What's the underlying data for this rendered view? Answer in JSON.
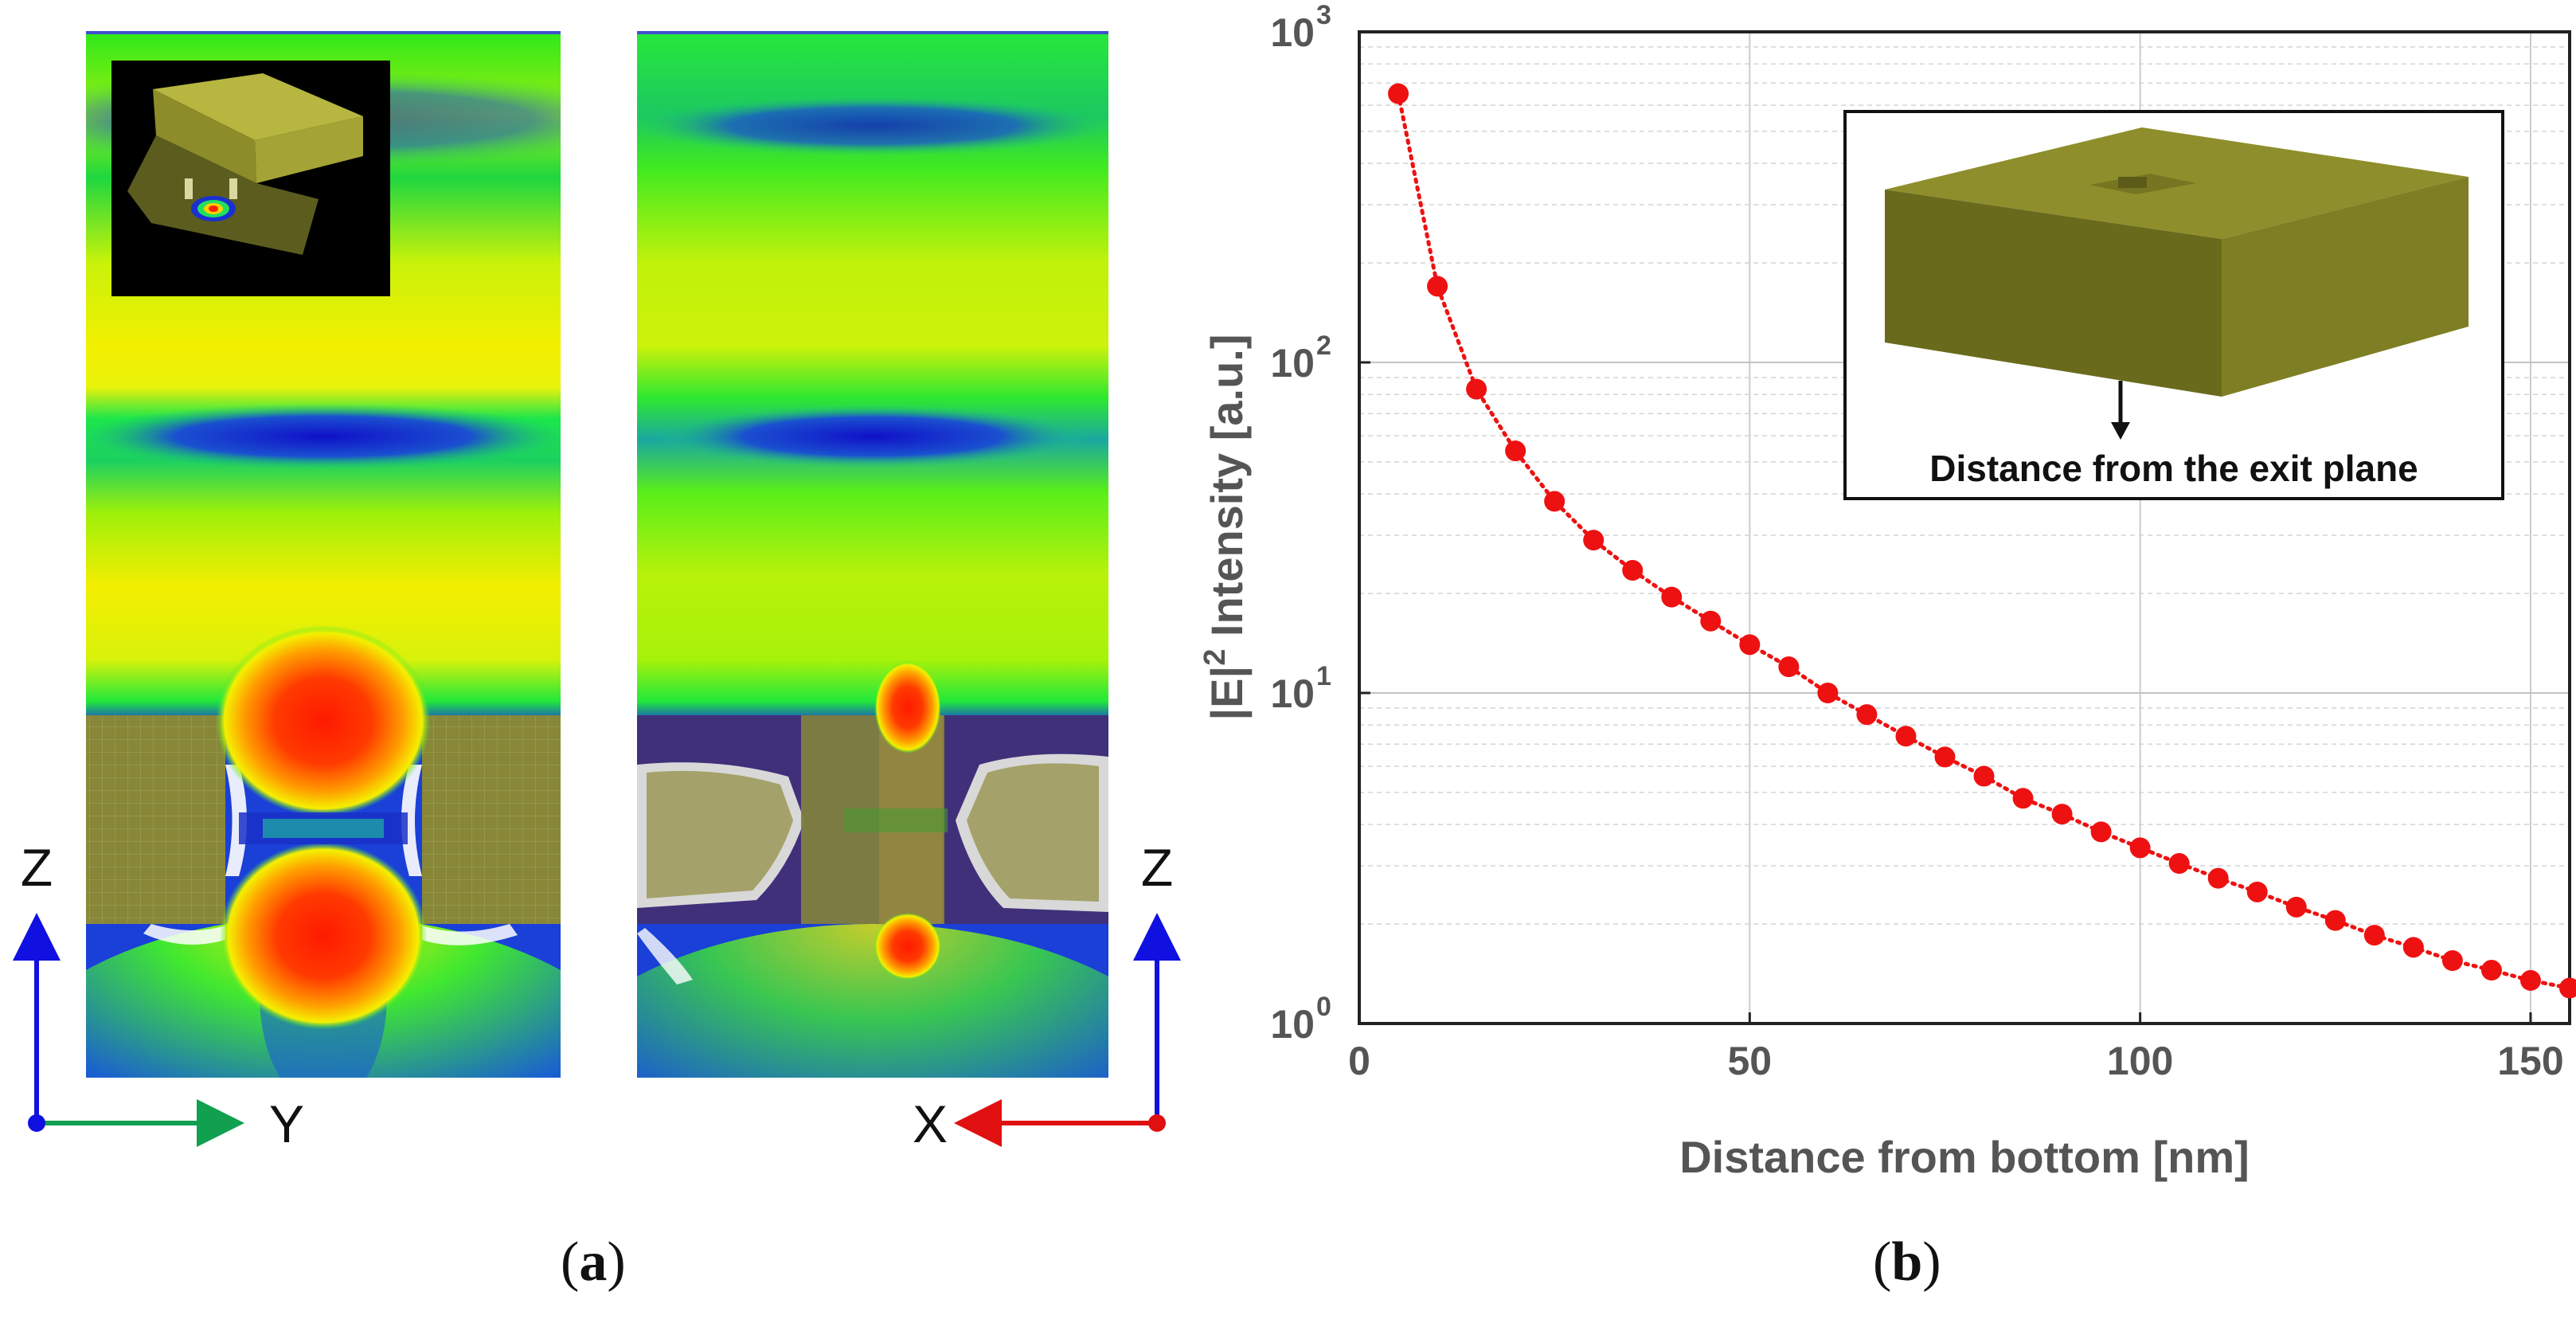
{
  "panel_a": {
    "caption_open": "(",
    "caption_label": "a",
    "caption_close": ")",
    "left_axis": {
      "vertical": "Z",
      "horizontal": "Y",
      "vertical_color": "#1010e0",
      "horizontal_color": "#10a050"
    },
    "right_axis": {
      "vertical": "Z",
      "horizontal": "X",
      "vertical_color": "#1010e0",
      "horizontal_color": "#e01010"
    },
    "colors": {
      "metal": "#8a8a38",
      "hot": "#ff2a00",
      "field_green": "#1cf000",
      "field_yellow": "#f2f000",
      "node_blue": "#1030d0"
    }
  },
  "panel_b": {
    "caption_open": "(",
    "caption_label": "b",
    "caption_close": ")",
    "inset_label": "Distance from the exit plane"
  },
  "chart_data": {
    "type": "line",
    "title": "",
    "xlabel": "Distance from bottom [nm]",
    "ylabel_pre": "|E|",
    "ylabel_sup": "2",
    "ylabel_post": " Intensity [a.u.]",
    "xscale": "linear",
    "yscale": "log",
    "xlim": [
      0,
      155
    ],
    "ylim": [
      1,
      1000
    ],
    "xticks": [
      "0",
      "50",
      "100",
      "150"
    ],
    "yticks": [
      {
        "base": "10",
        "exp": "0"
      },
      {
        "base": "10",
        "exp": "1"
      },
      {
        "base": "10",
        "exp": "2"
      },
      {
        "base": "10",
        "exp": "3"
      }
    ],
    "grid": true,
    "series": [
      {
        "name": "|E|^2",
        "color": "#ee1111",
        "marker": "circle",
        "linestyle": "dotted",
        "x": [
          5,
          10,
          15,
          20,
          25,
          30,
          35,
          40,
          45,
          50,
          55,
          60,
          65,
          70,
          75,
          80,
          85,
          90,
          95,
          100,
          105,
          110,
          115,
          120,
          125,
          130,
          135,
          140,
          145,
          150,
          155
        ],
        "y": [
          650,
          170,
          83,
          54,
          38,
          29,
          23.5,
          19.5,
          16.5,
          14,
          12,
          10,
          8.6,
          7.4,
          6.4,
          5.6,
          4.8,
          4.3,
          3.8,
          3.4,
          3.05,
          2.75,
          2.5,
          2.25,
          2.05,
          1.85,
          1.7,
          1.55,
          1.45,
          1.35,
          1.28
        ]
      }
    ]
  }
}
